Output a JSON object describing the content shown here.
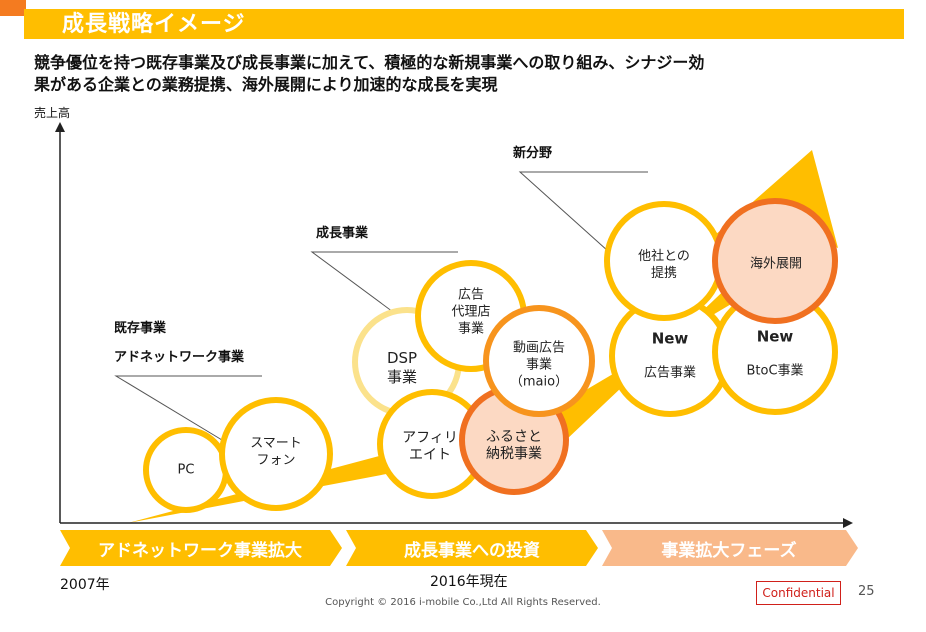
{
  "header": {
    "title": "成長戦略イメージ",
    "headline_line1": "競争優位を持つ既存事業及び成長事業に加えて、積極的な新規事業への取り組み、シナジー効",
    "headline_line2": "果がある企業との業務提携、海外展開により加速的な成長を実現"
  },
  "axis": {
    "y_label": "売上高"
  },
  "groups": {
    "existing_line1": "既存事業",
    "existing_line2": "アドネットワーク事業",
    "growth": "成長事業",
    "new": "新分野"
  },
  "circles": {
    "pc": "PC",
    "smartphone": "スマート\nフォン",
    "dsp": "DSP\n事業",
    "agency": "広告\n代理店\n事業",
    "video_ad": "動画広告\n事業\n（maio）",
    "affiliate": "アフィリ\nエイト",
    "furusato": "ふるさと\n納税事業",
    "alliance": "他社との\n提携",
    "overseas": "海外展開",
    "new_ad_title": "New",
    "new_ad_sub": "広告事業",
    "new_btoc_title": "New",
    "new_btoc_sub": "BtoC事業"
  },
  "phases": [
    "アドネットワーク事業拡大",
    "成長事業への投資",
    "事業拡大フェーズ"
  ],
  "footer": {
    "start_year": "2007年",
    "current_year": "2016年現在",
    "copyright": "Copyright © 2016 i-mobile Co.,Ltd All Rights Reserved.",
    "confidential": "Confidential",
    "page_number": "25"
  },
  "colors": {
    "accent": "#f47b20",
    "yellow": "#ffbe00",
    "orange": "#f07020",
    "light_orange": "#fcd9c3",
    "phase3": "#f9b98a"
  }
}
